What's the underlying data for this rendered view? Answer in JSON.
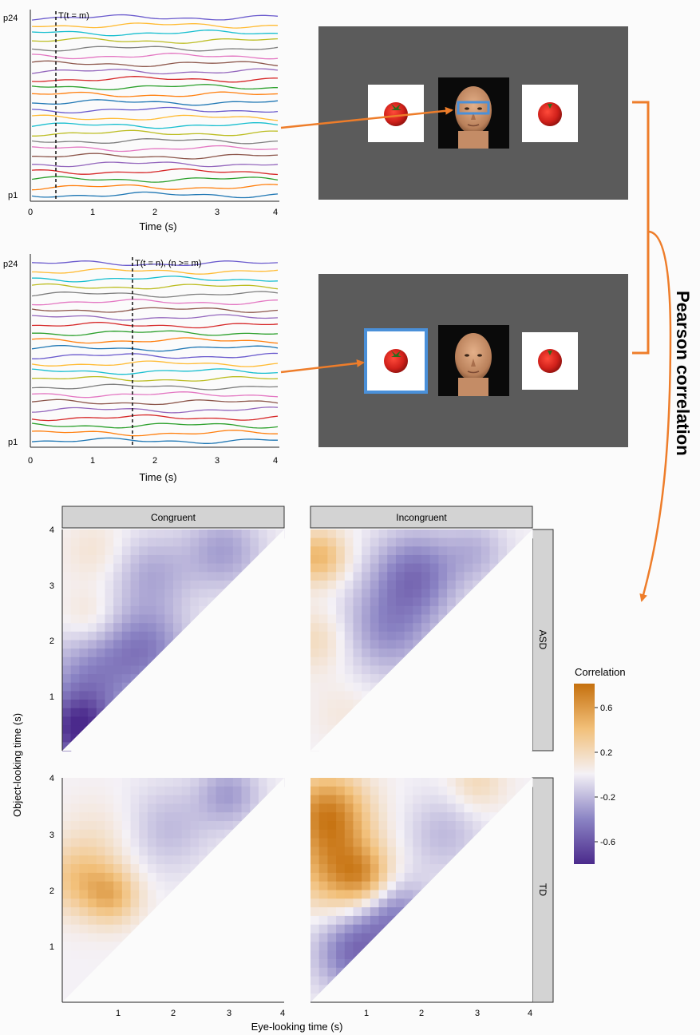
{
  "top_panel": {
    "marker_label": "T(t = m)",
    "p_top": "p24",
    "p_bottom": "p1",
    "xlabel": "Time (s)",
    "xticks": [
      "0",
      "1",
      "2",
      "3",
      "4"
    ],
    "marker_time": 0.4
  },
  "middle_panel": {
    "marker_label": "T(t = n), (n >= m)",
    "p_top": "p24",
    "p_bottom": "p1",
    "xlabel": "Time (s)",
    "xticks": [
      "0",
      "1",
      "2",
      "3",
      "4"
    ],
    "marker_time": 1.68
  },
  "side_label": "Pearson correlation",
  "colors": {
    "arrow": "#ee7d2a",
    "highlight": "#4a90d9",
    "screen": "#5b5b5b",
    "strip": "#d3d3d3"
  },
  "trace_colors": [
    "#1f77b4",
    "#ff7f0e",
    "#2ca02c",
    "#d62728",
    "#9467bd",
    "#8c564b",
    "#e377c2",
    "#7f7f7f",
    "#bcbd22",
    "#17becf",
    "#ffbb33",
    "#6a5acd"
  ],
  "chart_data": {
    "type": "heatmap",
    "panels": [
      {
        "column": "Congruent",
        "row": "ASD"
      },
      {
        "column": "Incongruent",
        "row": "ASD"
      },
      {
        "column": "Congruent",
        "row": "TD"
      },
      {
        "column": "Incongruent",
        "row": "TD"
      }
    ],
    "columns": [
      "Congruent",
      "Incongruent"
    ],
    "rows": [
      "ASD",
      "TD"
    ],
    "xlabel": "Eye-looking time (s)",
    "ylabel": "Object-looking time (s)",
    "x_ticks": [
      "1",
      "2",
      "3",
      "4"
    ],
    "y_ticks": [
      "1",
      "2",
      "3",
      "4"
    ],
    "x_range": [
      0,
      4
    ],
    "y_range": [
      0,
      4
    ],
    "legend": {
      "title": "Correlation",
      "ticks": [
        "0.6",
        "0.2",
        "-0.2",
        "-0.6"
      ],
      "range": [
        -0.8,
        0.8
      ],
      "colors": [
        "#4b2a8c",
        "#8b84c4",
        "#f4f1f6",
        "#f2c07a",
        "#c5700e"
      ],
      "placement": "right"
    },
    "blobs": [
      [
        {
          "x": 0.3,
          "y": 0.35,
          "v": -0.75,
          "s": 0.45
        },
        {
          "x": 0.5,
          "y": 1.3,
          "v": -0.35,
          "s": 0.6
        },
        {
          "x": 1.5,
          "y": 1.85,
          "v": -0.4,
          "s": 0.55
        },
        {
          "x": 0.5,
          "y": 2.4,
          "v": 0.15,
          "s": 0.35
        },
        {
          "x": 1.6,
          "y": 3.2,
          "v": -0.25,
          "s": 0.5
        },
        {
          "x": 2.9,
          "y": 3.6,
          "v": -0.3,
          "s": 0.5
        },
        {
          "x": 0.6,
          "y": 3.6,
          "v": 0.12,
          "s": 0.4
        }
      ],
      [
        {
          "x": 0.15,
          "y": 3.5,
          "v": 0.45,
          "s": 0.35
        },
        {
          "x": 0.15,
          "y": 2.0,
          "v": 0.2,
          "s": 0.4
        },
        {
          "x": 1.9,
          "y": 3.2,
          "v": -0.45,
          "s": 0.55
        },
        {
          "x": 1.4,
          "y": 2.2,
          "v": -0.35,
          "s": 0.6
        },
        {
          "x": 0.6,
          "y": 0.7,
          "v": 0.08,
          "s": 0.4
        },
        {
          "x": 3.0,
          "y": 3.6,
          "v": -0.2,
          "s": 0.4
        }
      ],
      [
        {
          "x": 0.3,
          "y": 2.2,
          "v": 0.35,
          "s": 0.45
        },
        {
          "x": 0.9,
          "y": 1.9,
          "v": 0.4,
          "s": 0.35
        },
        {
          "x": 1.9,
          "y": 3.1,
          "v": -0.2,
          "s": 0.55
        },
        {
          "x": 3.0,
          "y": 3.7,
          "v": -0.3,
          "s": 0.4
        },
        {
          "x": 0.7,
          "y": 3.0,
          "v": 0.1,
          "s": 0.5
        }
      ],
      [
        {
          "x": 0.3,
          "y": 3.4,
          "v": 0.65,
          "s": 0.5
        },
        {
          "x": 0.5,
          "y": 2.4,
          "v": 0.55,
          "s": 0.55
        },
        {
          "x": 1.0,
          "y": 2.2,
          "v": 0.35,
          "s": 0.35
        },
        {
          "x": 0.8,
          "y": 0.9,
          "v": -0.5,
          "s": 0.5
        },
        {
          "x": 1.5,
          "y": 1.6,
          "v": -0.4,
          "s": 0.45
        },
        {
          "x": 2.4,
          "y": 3.0,
          "v": -0.2,
          "s": 0.5
        },
        {
          "x": 3.0,
          "y": 3.9,
          "v": 0.2,
          "s": 0.35
        }
      ]
    ]
  }
}
